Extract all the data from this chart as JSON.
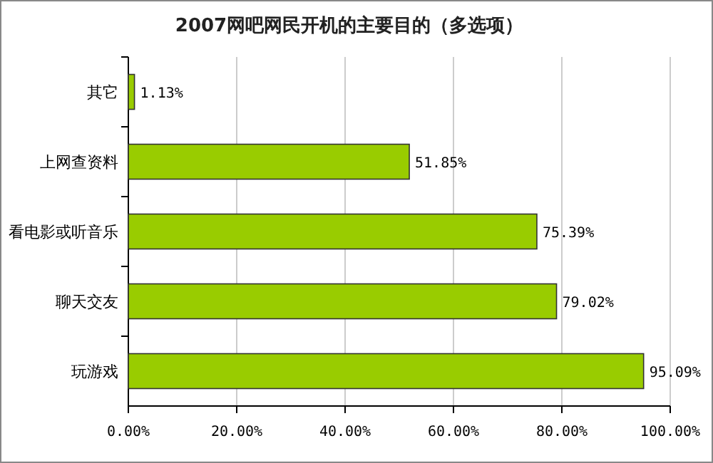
{
  "chart_data": {
    "type": "bar",
    "orientation": "horizontal",
    "title": "2007网吧网民开机的主要目的（多选项）",
    "categories": [
      "其它",
      "上网查资料",
      "看电影或听音乐",
      "聊天交友",
      "玩游戏"
    ],
    "values": [
      1.13,
      51.85,
      75.39,
      79.02,
      95.09
    ],
    "value_labels": [
      "1.13%",
      "51.85%",
      "75.39%",
      "79.02%",
      "95.09%"
    ],
    "color": "#99cc00",
    "xlim": [
      0,
      100
    ],
    "xticks": [
      {
        "value": 0,
        "label": "0.00%"
      },
      {
        "value": 20,
        "label": "20.00%"
      },
      {
        "value": 40,
        "label": "40.00%"
      },
      {
        "value": 60,
        "label": "60.00%"
      },
      {
        "value": 80,
        "label": "80.00%"
      },
      {
        "value": 100,
        "label": "100.00%"
      }
    ],
    "grid": "x"
  }
}
